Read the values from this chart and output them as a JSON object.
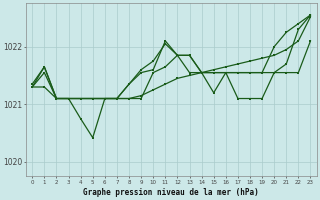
{
  "title": "Graphe pression niveau de la mer (hPa)",
  "bg_color": "#cce8e8",
  "grid_color": "#aacccc",
  "line_color": "#1a5c1a",
  "ylim": [
    1019.75,
    1022.75
  ],
  "y_ticks": [
    1020,
    1021,
    1022
  ],
  "x_ticks": [
    0,
    1,
    2,
    3,
    4,
    5,
    6,
    7,
    8,
    9,
    10,
    11,
    12,
    13,
    14,
    15,
    16,
    17,
    18,
    19,
    20,
    21,
    22,
    23
  ],
  "series1": [
    1021.35,
    1021.65,
    1021.1,
    1021.1,
    1020.75,
    1020.42,
    1021.1,
    1021.1,
    1021.35,
    1021.55,
    1021.6,
    1022.1,
    1021.85,
    1021.85,
    1021.55,
    1021.2,
    1021.55,
    1021.1,
    1021.1,
    1021.1,
    1021.55,
    1021.7,
    1022.3,
    1022.55
  ],
  "series2": [
    1021.3,
    1021.3,
    1021.1,
    1021.1,
    1021.1,
    1021.1,
    1021.1,
    1021.1,
    1021.1,
    1021.15,
    1021.25,
    1021.35,
    1021.45,
    1021.5,
    1021.55,
    1021.6,
    1021.65,
    1021.7,
    1021.75,
    1021.8,
    1021.85,
    1021.95,
    1022.1,
    1022.52
  ],
  "series3": [
    1021.3,
    1021.55,
    1021.1,
    1021.1,
    1021.1,
    1021.1,
    1021.1,
    1021.1,
    1021.1,
    1021.1,
    1021.55,
    1021.65,
    1021.85,
    1021.55,
    1021.55,
    1021.55,
    1021.55,
    1021.55,
    1021.55,
    1021.55,
    1022.0,
    1022.25,
    1022.4,
    1022.55
  ],
  "series4": [
    1021.3,
    1021.65,
    1021.1,
    1021.1,
    1021.1,
    1021.1,
    1021.1,
    1021.1,
    1021.35,
    1021.6,
    1021.75,
    1022.05,
    1021.85,
    1021.85,
    1021.55,
    1021.55,
    1021.55,
    1021.55,
    1021.55,
    1021.55,
    1021.55,
    1021.55,
    1021.55,
    1022.1
  ]
}
